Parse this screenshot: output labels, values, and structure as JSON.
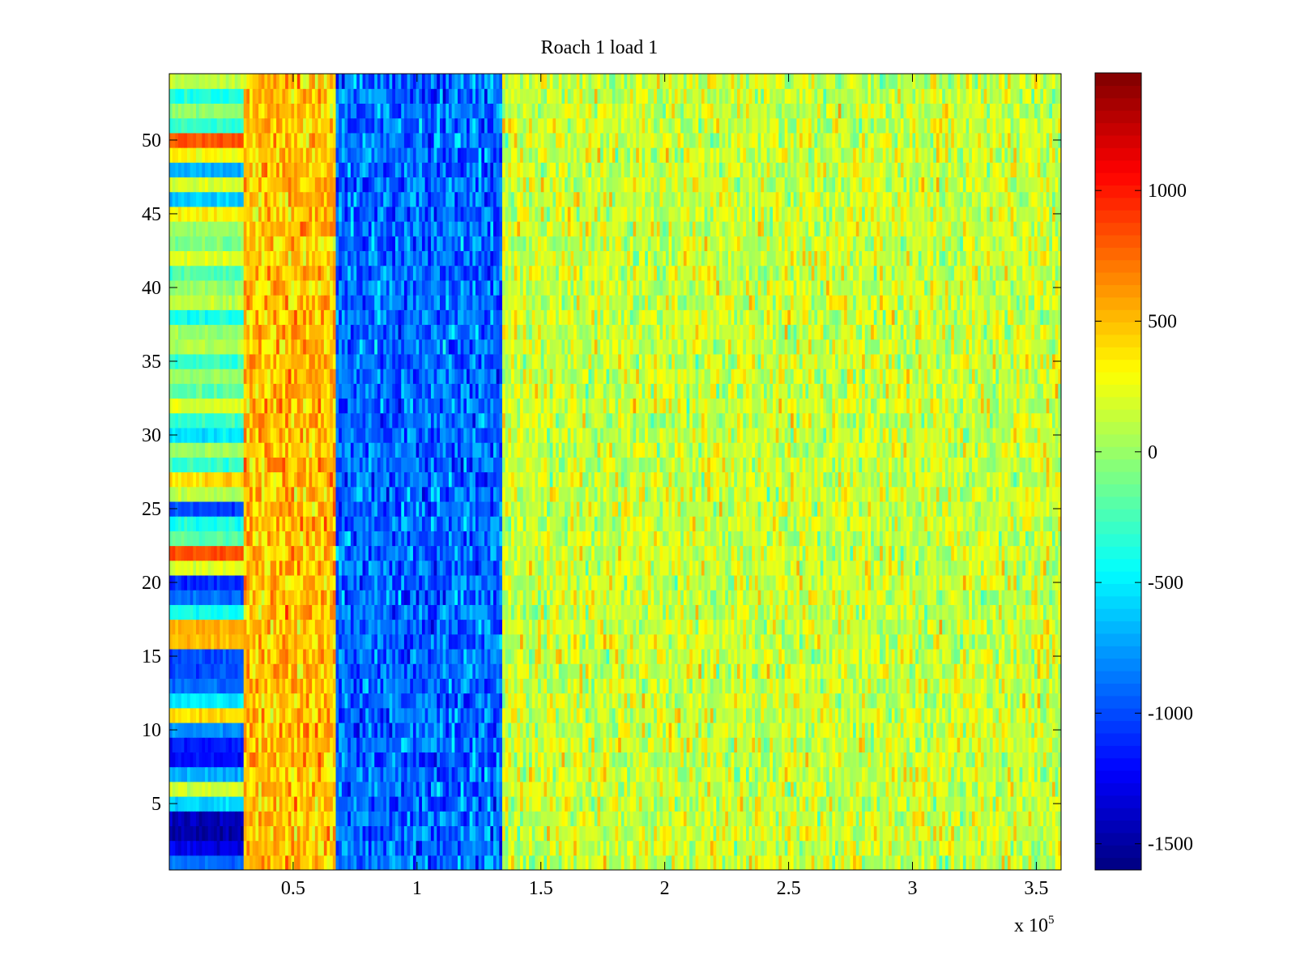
{
  "chart_data": {
    "type": "heatmap",
    "title": "Roach 1 load 1",
    "xlabel": "",
    "ylabel": "",
    "x_range": [
      0,
      360000
    ],
    "y_range": [
      0.5,
      54.5
    ],
    "n_rows": 54,
    "x_ticks": [
      50000,
      100000,
      150000,
      200000,
      250000,
      300000,
      350000
    ],
    "x_tick_labels": [
      "0.5",
      "1",
      "1.5",
      "2",
      "2.5",
      "3",
      "3.5"
    ],
    "x_multiplier_label": "x 10",
    "x_multiplier_exponent": "5",
    "y_ticks": [
      5,
      10,
      15,
      20,
      25,
      30,
      35,
      40,
      45,
      50
    ],
    "y_tick_labels": [
      "5",
      "10",
      "15",
      "20",
      "25",
      "30",
      "35",
      "40",
      "45",
      "50"
    ],
    "colorbar": {
      "colormap": "jet",
      "clim": [
        -1600,
        1450
      ],
      "ticks": [
        -1500,
        -1000,
        -500,
        0,
        500,
        1000
      ],
      "tick_labels": [
        "-1500",
        "-1000",
        "-500",
        "0",
        "500",
        "1000"
      ]
    },
    "segments": [
      {
        "x_start": 0,
        "x_end": 30000,
        "description": "baseline; varies strongly by row"
      },
      {
        "x_start": 30000,
        "x_end": 67000,
        "approx_value": 500
      },
      {
        "x_start": 67000,
        "x_end": 135000,
        "approx_value": -900
      },
      {
        "x_start": 135000,
        "x_end": 360000,
        "approx_value": 150
      }
    ],
    "baseline_row_values": {
      "1": -900,
      "2": -1300,
      "3": -1500,
      "4": -1450,
      "5": -600,
      "6": 150,
      "7": -700,
      "8": -1200,
      "9": -1150,
      "10": -800,
      "11": 400,
      "12": -500,
      "13": -900,
      "14": -1000,
      "15": -1000,
      "16": 500,
      "17": 550,
      "18": -400,
      "19": -900,
      "20": -1100,
      "21": 200,
      "22": 850,
      "23": -200,
      "24": -400,
      "25": -1000,
      "26": 100,
      "27": 400,
      "28": -300,
      "29": 0,
      "30": -500,
      "31": -300,
      "32": 200,
      "33": -200,
      "34": 0,
      "35": -300,
      "36": 100,
      "37": 0,
      "38": -400,
      "39": 100,
      "40": 0,
      "41": -200,
      "42": 200,
      "43": -100,
      "44": 0,
      "45": 300,
      "46": -600,
      "47": 200,
      "48": -700,
      "49": 300,
      "50": 800,
      "51": -300,
      "52": 0,
      "53": -400,
      "54": 100
    }
  }
}
